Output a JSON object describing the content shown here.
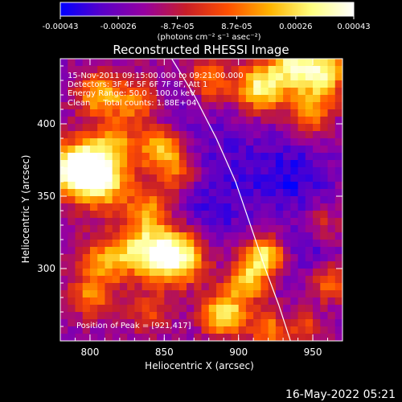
{
  "colorbar": {
    "tick_labels": [
      "-0.00043",
      "-0.00026",
      "-8.7e-05",
      "8.7e-05",
      "0.00026",
      "0.00043"
    ],
    "tick_values": [
      -0.00043,
      -0.00026,
      -8.7e-05,
      8.7e-05,
      0.00026,
      0.00043
    ],
    "range": [
      -0.00043,
      0.00043
    ],
    "units": "(photons cm⁻² s⁻¹ asec⁻²)",
    "colors": [
      "#0000ff",
      "#5a00c8",
      "#9600a0",
      "#c81e28",
      "#ff5000",
      "#ffb400",
      "#ffff80",
      "#ffffff"
    ]
  },
  "chart_data": {
    "type": "heatmap",
    "title": "Reconstructed RHESSI Image",
    "xlabel": "Heliocentric X (arcsec)",
    "ylabel": "Heliocentric Y (arcsec)",
    "xlim": [
      780,
      970
    ],
    "ylim": [
      250,
      445
    ],
    "x_ticks": [
      800,
      850,
      900,
      950
    ],
    "x_tick_labels": [
      "800",
      "850",
      "900",
      "950"
    ],
    "y_ticks": [
      300,
      350,
      400
    ],
    "y_tick_labels": [
      "300",
      "350",
      "400"
    ],
    "grid_size": [
      38,
      39
    ],
    "hot_regions": [
      {
        "x": 790,
        "y": 370,
        "amp": 1.0,
        "r": 12
      },
      {
        "x": 808,
        "y": 360,
        "amp": 0.8,
        "r": 14
      },
      {
        "x": 815,
        "y": 385,
        "amp": 0.5,
        "r": 12
      },
      {
        "x": 805,
        "y": 420,
        "amp": 0.6,
        "r": 10
      },
      {
        "x": 830,
        "y": 415,
        "amp": 0.45,
        "r": 12
      },
      {
        "x": 848,
        "y": 382,
        "amp": 0.7,
        "r": 10
      },
      {
        "x": 860,
        "y": 365,
        "amp": 0.4,
        "r": 10
      },
      {
        "x": 840,
        "y": 340,
        "amp": 0.55,
        "r": 10
      },
      {
        "x": 858,
        "y": 308,
        "amp": 1.0,
        "r": 13
      },
      {
        "x": 835,
        "y": 313,
        "amp": 0.7,
        "r": 12
      },
      {
        "x": 810,
        "y": 305,
        "amp": 0.55,
        "r": 12
      },
      {
        "x": 800,
        "y": 280,
        "amp": 0.45,
        "r": 10
      },
      {
        "x": 840,
        "y": 270,
        "amp": 0.35,
        "r": 10
      },
      {
        "x": 880,
        "y": 430,
        "amp": 0.5,
        "r": 10
      },
      {
        "x": 915,
        "y": 425,
        "amp": 0.85,
        "r": 12
      },
      {
        "x": 935,
        "y": 440,
        "amp": 0.6,
        "r": 10
      },
      {
        "x": 955,
        "y": 435,
        "amp": 0.85,
        "r": 12
      },
      {
        "x": 948,
        "y": 408,
        "amp": 0.55,
        "r": 10
      },
      {
        "x": 918,
        "y": 308,
        "amp": 0.85,
        "r": 10
      },
      {
        "x": 905,
        "y": 290,
        "amp": 0.6,
        "r": 10
      },
      {
        "x": 890,
        "y": 268,
        "amp": 0.8,
        "r": 10
      },
      {
        "x": 920,
        "y": 258,
        "amp": 0.5,
        "r": 9
      },
      {
        "x": 955,
        "y": 330,
        "amp": 0.4,
        "r": 10
      },
      {
        "x": 962,
        "y": 290,
        "amp": 0.45,
        "r": 9
      },
      {
        "x": 945,
        "y": 258,
        "amp": 0.35,
        "r": 8
      }
    ],
    "cold_regions": [
      {
        "x": 900,
        "y": 370,
        "amp": 0.6,
        "r": 30
      },
      {
        "x": 940,
        "y": 360,
        "amp": 0.8,
        "r": 16
      },
      {
        "x": 950,
        "y": 320,
        "amp": 0.9,
        "r": 12
      },
      {
        "x": 880,
        "y": 340,
        "amp": 0.5,
        "r": 18
      },
      {
        "x": 860,
        "y": 410,
        "amp": 0.4,
        "r": 14
      },
      {
        "x": 930,
        "y": 300,
        "amp": 0.55,
        "r": 10
      }
    ],
    "limb_curve": [
      [
        855,
        445
      ],
      [
        870,
        420
      ],
      [
        885,
        390
      ],
      [
        898,
        360
      ],
      [
        908,
        330
      ],
      [
        918,
        300
      ],
      [
        927,
        275
      ],
      [
        935,
        250
      ]
    ],
    "annotations": [
      "15-Nov-2011 09:15:00.000 to 09:21:00.000",
      "Detectors: 3F 4F 5F 6F 7F 8F, Att 1",
      "Energy Range: 50.0 - 100.0 keV",
      "Clean     Total counts: 1.88E+04"
    ],
    "peak_label": "Position of Peak = [921,417]",
    "peak": [
      921,
      417
    ]
  },
  "footer_timestamp": "16-May-2022 05:21"
}
